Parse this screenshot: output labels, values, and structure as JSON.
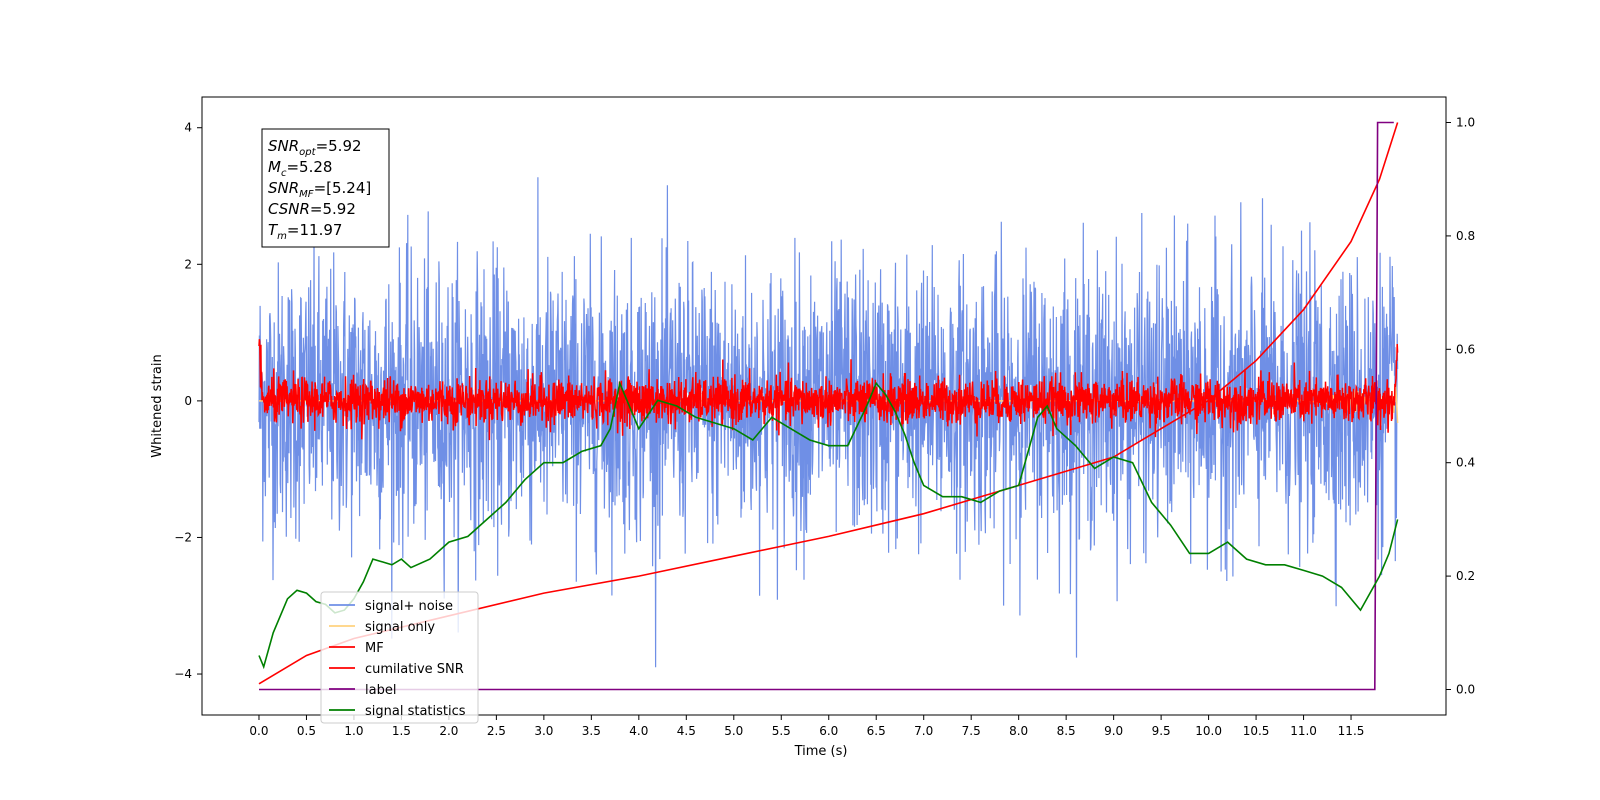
{
  "chart_data": {
    "type": "line",
    "title": "",
    "xlabel": "Time (s)",
    "ylabel": "Whitened strain",
    "xlim": [
      -0.6,
      12.5
    ],
    "ylim": [
      -4.6,
      4.45
    ],
    "y2lim": [
      -0.045,
      1.045
    ],
    "grid": false,
    "legend_position": "lower-left",
    "x_ticks": [
      "0.0",
      "0.5",
      "1.0",
      "1.5",
      "2.0",
      "2.5",
      "3.0",
      "3.5",
      "4.0",
      "4.5",
      "5.0",
      "5.5",
      "6.0",
      "6.5",
      "7.0",
      "7.5",
      "8.0",
      "8.5",
      "9.0",
      "9.5",
      "10.0",
      "10.5",
      "11.0",
      "11.5"
    ],
    "y_ticks": [
      "4",
      "2",
      "0",
      "−2",
      "−4"
    ],
    "y2_ticks": [
      "1.0",
      "0.8",
      "0.6",
      "0.4",
      "0.2",
      "0.0"
    ],
    "annotation": {
      "lines": [
        {
          "base": "SNR",
          "sub": "opt",
          "value": "=5.92"
        },
        {
          "base": "M",
          "sub": "c",
          "value": "=5.28"
        },
        {
          "base": "SNR",
          "sub": "MF",
          "value": "=[5.24]"
        },
        {
          "base": "CSNR",
          "sub": "",
          "value": "=5.92"
        },
        {
          "base": "T",
          "sub": "m",
          "value": "=11.97"
        }
      ]
    },
    "series": [
      {
        "name": "signal+ noise",
        "color": "#6f8fe6",
        "axis": "left",
        "description_kind": "noise",
        "t_range": [
          0,
          11.99
        ],
        "amplitude_std": 1.0
      },
      {
        "name": "signal only",
        "color": "#ffd27f",
        "axis": "left",
        "t_range": [
          0,
          11.99
        ],
        "peak": 0.55
      },
      {
        "name": "MF",
        "color": "#ff0000",
        "axis": "left",
        "t_range": [
          0,
          11.99
        ],
        "amplitude_std": 0.17
      },
      {
        "name": "cumilative SNR",
        "color": "#ff0000",
        "axis": "right",
        "x": [
          0,
          0.5,
          1.0,
          2.0,
          3.0,
          4.0,
          5.0,
          6.0,
          7.0,
          8.0,
          9.0,
          10.0,
          10.5,
          11.0,
          11.5,
          11.8,
          11.99
        ],
        "y": [
          0.01,
          0.06,
          0.09,
          0.13,
          0.17,
          0.2,
          0.235,
          0.27,
          0.31,
          0.36,
          0.41,
          0.51,
          0.58,
          0.67,
          0.79,
          0.9,
          1.0
        ]
      },
      {
        "name": "label",
        "color": "#800080",
        "axis": "right",
        "x": [
          0,
          11.75,
          11.78,
          11.95
        ],
        "y": [
          0.0,
          0.0,
          1.0,
          1.0
        ]
      },
      {
        "name": "signal statistics",
        "color": "#008000",
        "axis": "right",
        "x": [
          0,
          0.05,
          0.15,
          0.3,
          0.4,
          0.5,
          0.6,
          0.7,
          0.8,
          0.9,
          1.0,
          1.1,
          1.2,
          1.3,
          1.4,
          1.5,
          1.6,
          1.8,
          2.0,
          2.2,
          2.4,
          2.6,
          2.8,
          3.0,
          3.2,
          3.4,
          3.6,
          3.7,
          3.8,
          3.9,
          4.0,
          4.2,
          4.4,
          4.6,
          4.8,
          5.0,
          5.2,
          5.4,
          5.6,
          5.8,
          6.0,
          6.2,
          6.4,
          6.5,
          6.6,
          6.7,
          6.8,
          6.9,
          7.0,
          7.2,
          7.4,
          7.6,
          7.8,
          8.0,
          8.2,
          8.3,
          8.4,
          8.6,
          8.8,
          9.0,
          9.2,
          9.4,
          9.6,
          9.8,
          10.0,
          10.2,
          10.4,
          10.6,
          10.8,
          11.0,
          11.2,
          11.4,
          11.6,
          11.8,
          11.9,
          11.99
        ],
        "y": [
          0.06,
          0.04,
          0.1,
          0.16,
          0.175,
          0.17,
          0.155,
          0.15,
          0.135,
          0.14,
          0.16,
          0.19,
          0.23,
          0.225,
          0.22,
          0.23,
          0.215,
          0.23,
          0.26,
          0.27,
          0.3,
          0.33,
          0.37,
          0.4,
          0.4,
          0.42,
          0.43,
          0.46,
          0.54,
          0.5,
          0.46,
          0.51,
          0.5,
          0.48,
          0.47,
          0.46,
          0.44,
          0.48,
          0.46,
          0.44,
          0.43,
          0.43,
          0.5,
          0.54,
          0.52,
          0.49,
          0.45,
          0.4,
          0.36,
          0.34,
          0.34,
          0.33,
          0.35,
          0.36,
          0.48,
          0.5,
          0.46,
          0.43,
          0.39,
          0.41,
          0.4,
          0.33,
          0.29,
          0.24,
          0.24,
          0.26,
          0.23,
          0.22,
          0.22,
          0.21,
          0.2,
          0.18,
          0.14,
          0.2,
          0.24,
          0.3
        ]
      }
    ]
  }
}
